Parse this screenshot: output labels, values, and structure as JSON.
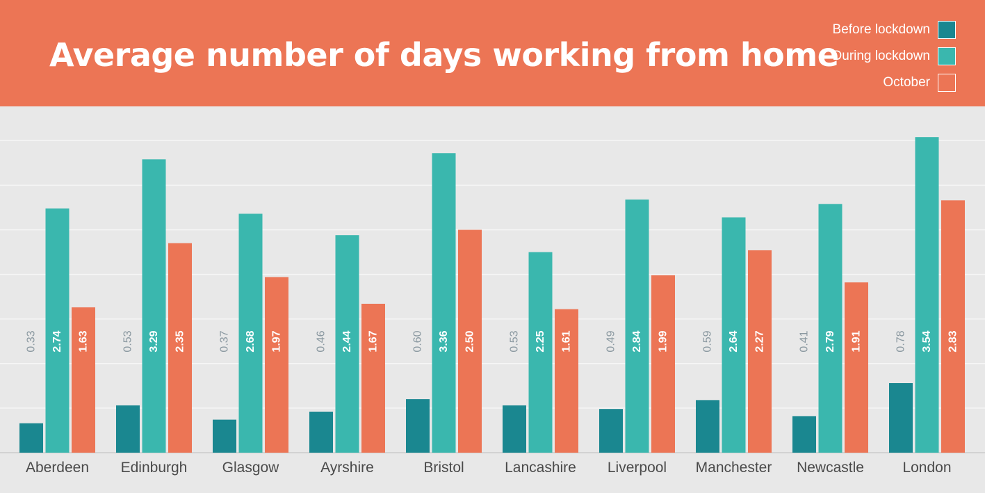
{
  "header": {
    "title": "Average number of days working from home"
  },
  "legend": [
    {
      "label": "Before lockdown",
      "color": "#1a8790"
    },
    {
      "label": "During lockdown",
      "color": "#3ab7ae"
    },
    {
      "label": "October",
      "color": "#ec7555"
    }
  ],
  "chart_data": {
    "type": "bar",
    "title": "Average number of days working from home",
    "categories": [
      "Aberdeen",
      "Edinburgh",
      "Glasgow",
      "Ayrshire",
      "Bristol",
      "Lancashire",
      "Liverpool",
      "Manchester",
      "Newcastle",
      "London"
    ],
    "series": [
      {
        "name": "Before lockdown",
        "color": "#1a8790",
        "label_color": "#8a98a0",
        "values": [
          0.33,
          0.53,
          0.37,
          0.46,
          0.6,
          0.53,
          0.49,
          0.59,
          0.41,
          0.78
        ]
      },
      {
        "name": "During lockdown",
        "color": "#3ab7ae",
        "label_color": "#ffffff",
        "values": [
          2.74,
          3.29,
          2.68,
          2.44,
          3.36,
          2.25,
          2.84,
          2.64,
          2.79,
          3.54
        ]
      },
      {
        "name": "October",
        "color": "#ec7555",
        "label_color": "#ffffff",
        "values": [
          1.63,
          2.35,
          1.97,
          1.67,
          2.5,
          1.61,
          1.99,
          2.27,
          1.91,
          2.83
        ]
      }
    ],
    "ylim": [
      0,
      3.5
    ],
    "y_gridlines": [
      0,
      0.5,
      1.0,
      1.5,
      2.0,
      2.5,
      3.0,
      3.5
    ],
    "y_tick_labels_visible": false,
    "grid": true,
    "legend_position": "top-right",
    "value_label_format": "2 decimals"
  }
}
